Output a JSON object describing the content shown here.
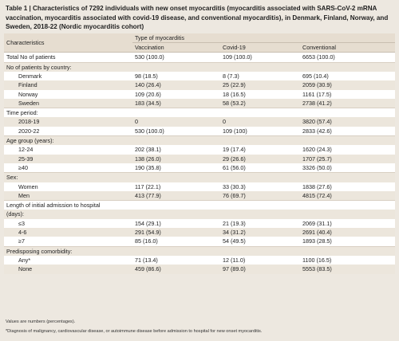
{
  "title": "Table 1 | Characteristics of 7292 individuals with new onset myocarditis (myocarditis associated with SARS-CoV-2 mRNA vaccination, myocarditis associated with covid-19 disease, and conventional myocarditis), in Denmark, Finland, Norway, and Sweden, 2018-22 (Nordic myocarditis cohort)",
  "header": {
    "characteristics": "Characteristics",
    "type_label": "Type of myocarditis",
    "col_vaccination": "Vaccination",
    "col_covid": "Covid-19",
    "col_conventional": "Conventional"
  },
  "rows": [
    {
      "label": "Total No of patients",
      "vac": "530 (100.0)",
      "cov": "109 (100.0)",
      "conv": "6653 (100.0)"
    },
    {
      "label": "No of patients by country:",
      "vac": "",
      "cov": "",
      "conv": ""
    },
    {
      "label": "Denmark",
      "vac": "98 (18.5)",
      "cov": "8 (7.3)",
      "conv": "695 (10.4)"
    },
    {
      "label": "Finland",
      "vac": "140 (26.4)",
      "cov": "25 (22.9)",
      "conv": "2059 (30.9)"
    },
    {
      "label": "Norway",
      "vac": "109 (20.6)",
      "cov": "18 (16.5)",
      "conv": "1161 (17.5)"
    },
    {
      "label": "Sweden",
      "vac": "183 (34.5)",
      "cov": "58 (53.2)",
      "conv": "2738 (41.2)"
    },
    {
      "label": "Time period:",
      "vac": "",
      "cov": "",
      "conv": ""
    },
    {
      "label": "2018-19",
      "vac": "0",
      "cov": "0",
      "conv": "3820 (57.4)"
    },
    {
      "label": "2020-22",
      "vac": "530 (100.0)",
      "cov": "109 (100)",
      "conv": "2833 (42.6)"
    },
    {
      "label": "Age group (years):",
      "vac": "",
      "cov": "",
      "conv": ""
    },
    {
      "label": "12-24",
      "vac": "202 (38.1)",
      "cov": "19 (17.4)",
      "conv": "1620 (24.3)"
    },
    {
      "label": "25-39",
      "vac": "138 (26.0)",
      "cov": "29 (26.6)",
      "conv": "1707 (25.7)"
    },
    {
      "label": "≥40",
      "vac": "190 (35.8)",
      "cov": "61 (56.0)",
      "conv": "3326 (50.0)"
    },
    {
      "label": "Sex:",
      "vac": "",
      "cov": "",
      "conv": ""
    },
    {
      "label": "Women",
      "vac": "117 (22.1)",
      "cov": "33 (30.3)",
      "conv": "1838 (27.6)"
    },
    {
      "label": "Men",
      "vac": "413 (77.9)",
      "cov": "76 (69.7)",
      "conv": "4815 (72.4)"
    },
    {
      "label": "Length of initial admission to hospital",
      "vac": "",
      "cov": "",
      "conv": ""
    },
    {
      "label": "(days):",
      "vac": "",
      "cov": "",
      "conv": ""
    },
    {
      "label": "≤3",
      "vac": "154 (29.1)",
      "cov": "21 (19.3)",
      "conv": "2069 (31.1)"
    },
    {
      "label": "4-6",
      "vac": "291 (54.9)",
      "cov": "34 (31.2)",
      "conv": "2691 (40.4)"
    },
    {
      "label": "≥7",
      "vac": "85 (16.0)",
      "cov": "54 (49.5)",
      "conv": "1893 (28.5)"
    },
    {
      "label": "Predisposing comorbidity:",
      "vac": "",
      "cov": "",
      "conv": ""
    },
    {
      "label": "Any*",
      "vac": "71 (13.4)",
      "cov": "12 (11.0)",
      "conv": "1100 (16.5)"
    },
    {
      "label": "None",
      "vac": "459 (86.6)",
      "cov": "97 (89.0)",
      "conv": "5553 (83.5)"
    }
  ],
  "footnotes": [
    "Values are numbers (percentages).",
    "*Diagnosis of malignancy, cardiovascular disease, or autoimmune disease before admission to hospital for new onset myocarditis."
  ]
}
